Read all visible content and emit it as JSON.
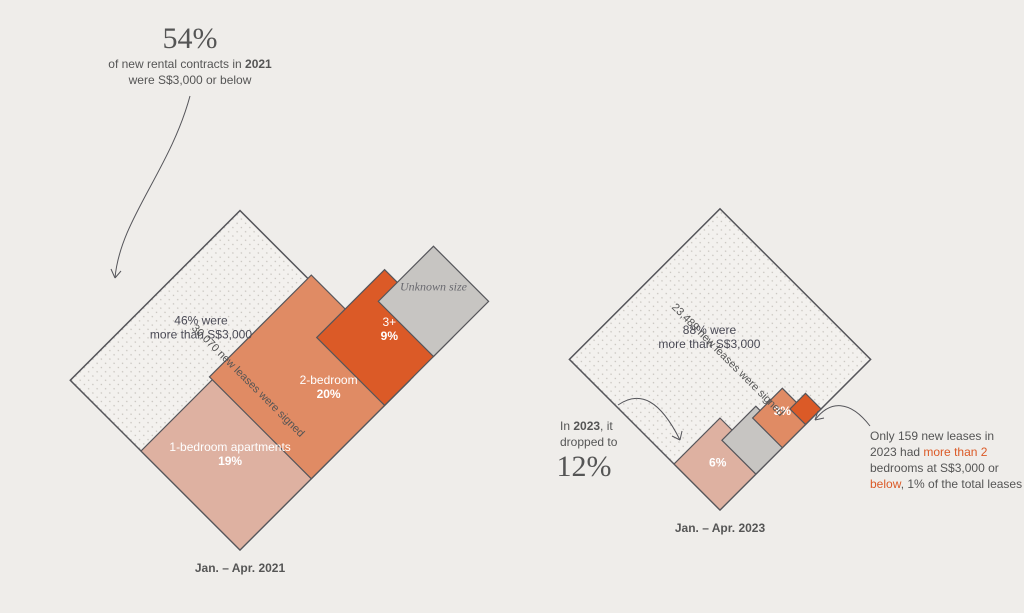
{
  "background_color": "#efedea",
  "stroke": "#55555a",
  "colors": {
    "dotted_bg": "#f3f1ee",
    "bed1": "#deb1a1",
    "bed2": "#e08b64",
    "bed3": "#db5a27",
    "unknown": "#c7c5c2",
    "highlight": "#db5a27"
  },
  "left": {
    "caption": "Jan. – Apr. 2021",
    "diag_label": "30,070 new leases were signed",
    "total_side": 240,
    "above": {
      "line1": "46% were",
      "line2": "more than S$3,000"
    },
    "segments": [
      {
        "key": "bed1",
        "side": 140,
        "label1": "1-bedroom apartments",
        "label2": "19%"
      },
      {
        "key": "bed2",
        "side": 144,
        "label1": "2-bedroom",
        "label2": "20%"
      },
      {
        "key": "bed3",
        "side": 96,
        "label1": "3+",
        "label2": "9%"
      },
      {
        "key": "unknown",
        "side": 78,
        "label1": "Unknown size"
      }
    ]
  },
  "right": {
    "caption": "Jan. – Apr. 2023",
    "diag_label": "23,489 new leases were signed",
    "total_side": 213,
    "above": {
      "line1": "88% were",
      "line2": "more than S$3,000"
    },
    "segments": [
      {
        "key": "bed1",
        "side": 65,
        "label": "6%"
      },
      {
        "key": "unknown",
        "side": 48
      },
      {
        "key": "bed2",
        "side": 42,
        "label": "3%"
      },
      {
        "key": "bed3",
        "side": 22
      }
    ]
  },
  "ann": {
    "a": {
      "big": "54%",
      "l1": "of new rental contracts in ",
      "l1b": "2021",
      "l2": "were S$3,000 or below"
    },
    "b": {
      "l1": "In ",
      "l1b": "2023",
      "l1c": ", it",
      "l2": "dropped to",
      "big": "12%"
    },
    "c": {
      "l1": "Only 159 new leases in",
      "l2": "2023 had ",
      "hl": "more than 2",
      "l3": "bedrooms at S$3,000 or",
      "l4": "below",
      "l4b": ", 1% of the total leases"
    }
  }
}
